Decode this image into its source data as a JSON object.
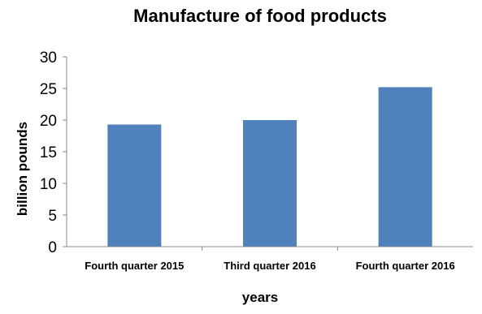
{
  "chart_data": {
    "type": "bar",
    "title": "Manufacture of food products",
    "xlabel": "years",
    "ylabel": "billion pounds",
    "categories": [
      "Fourth quarter 2015",
      "Third quarter 2016",
      "Fourth quarter 2016"
    ],
    "values": [
      19.3,
      20.0,
      25.2
    ],
    "ylim": [
      0,
      30
    ],
    "yticks": [
      "0",
      "5",
      "10",
      "15",
      "20",
      "25",
      "30"
    ],
    "bar_color": "#4f81bd",
    "grid": false,
    "legend": "none"
  }
}
